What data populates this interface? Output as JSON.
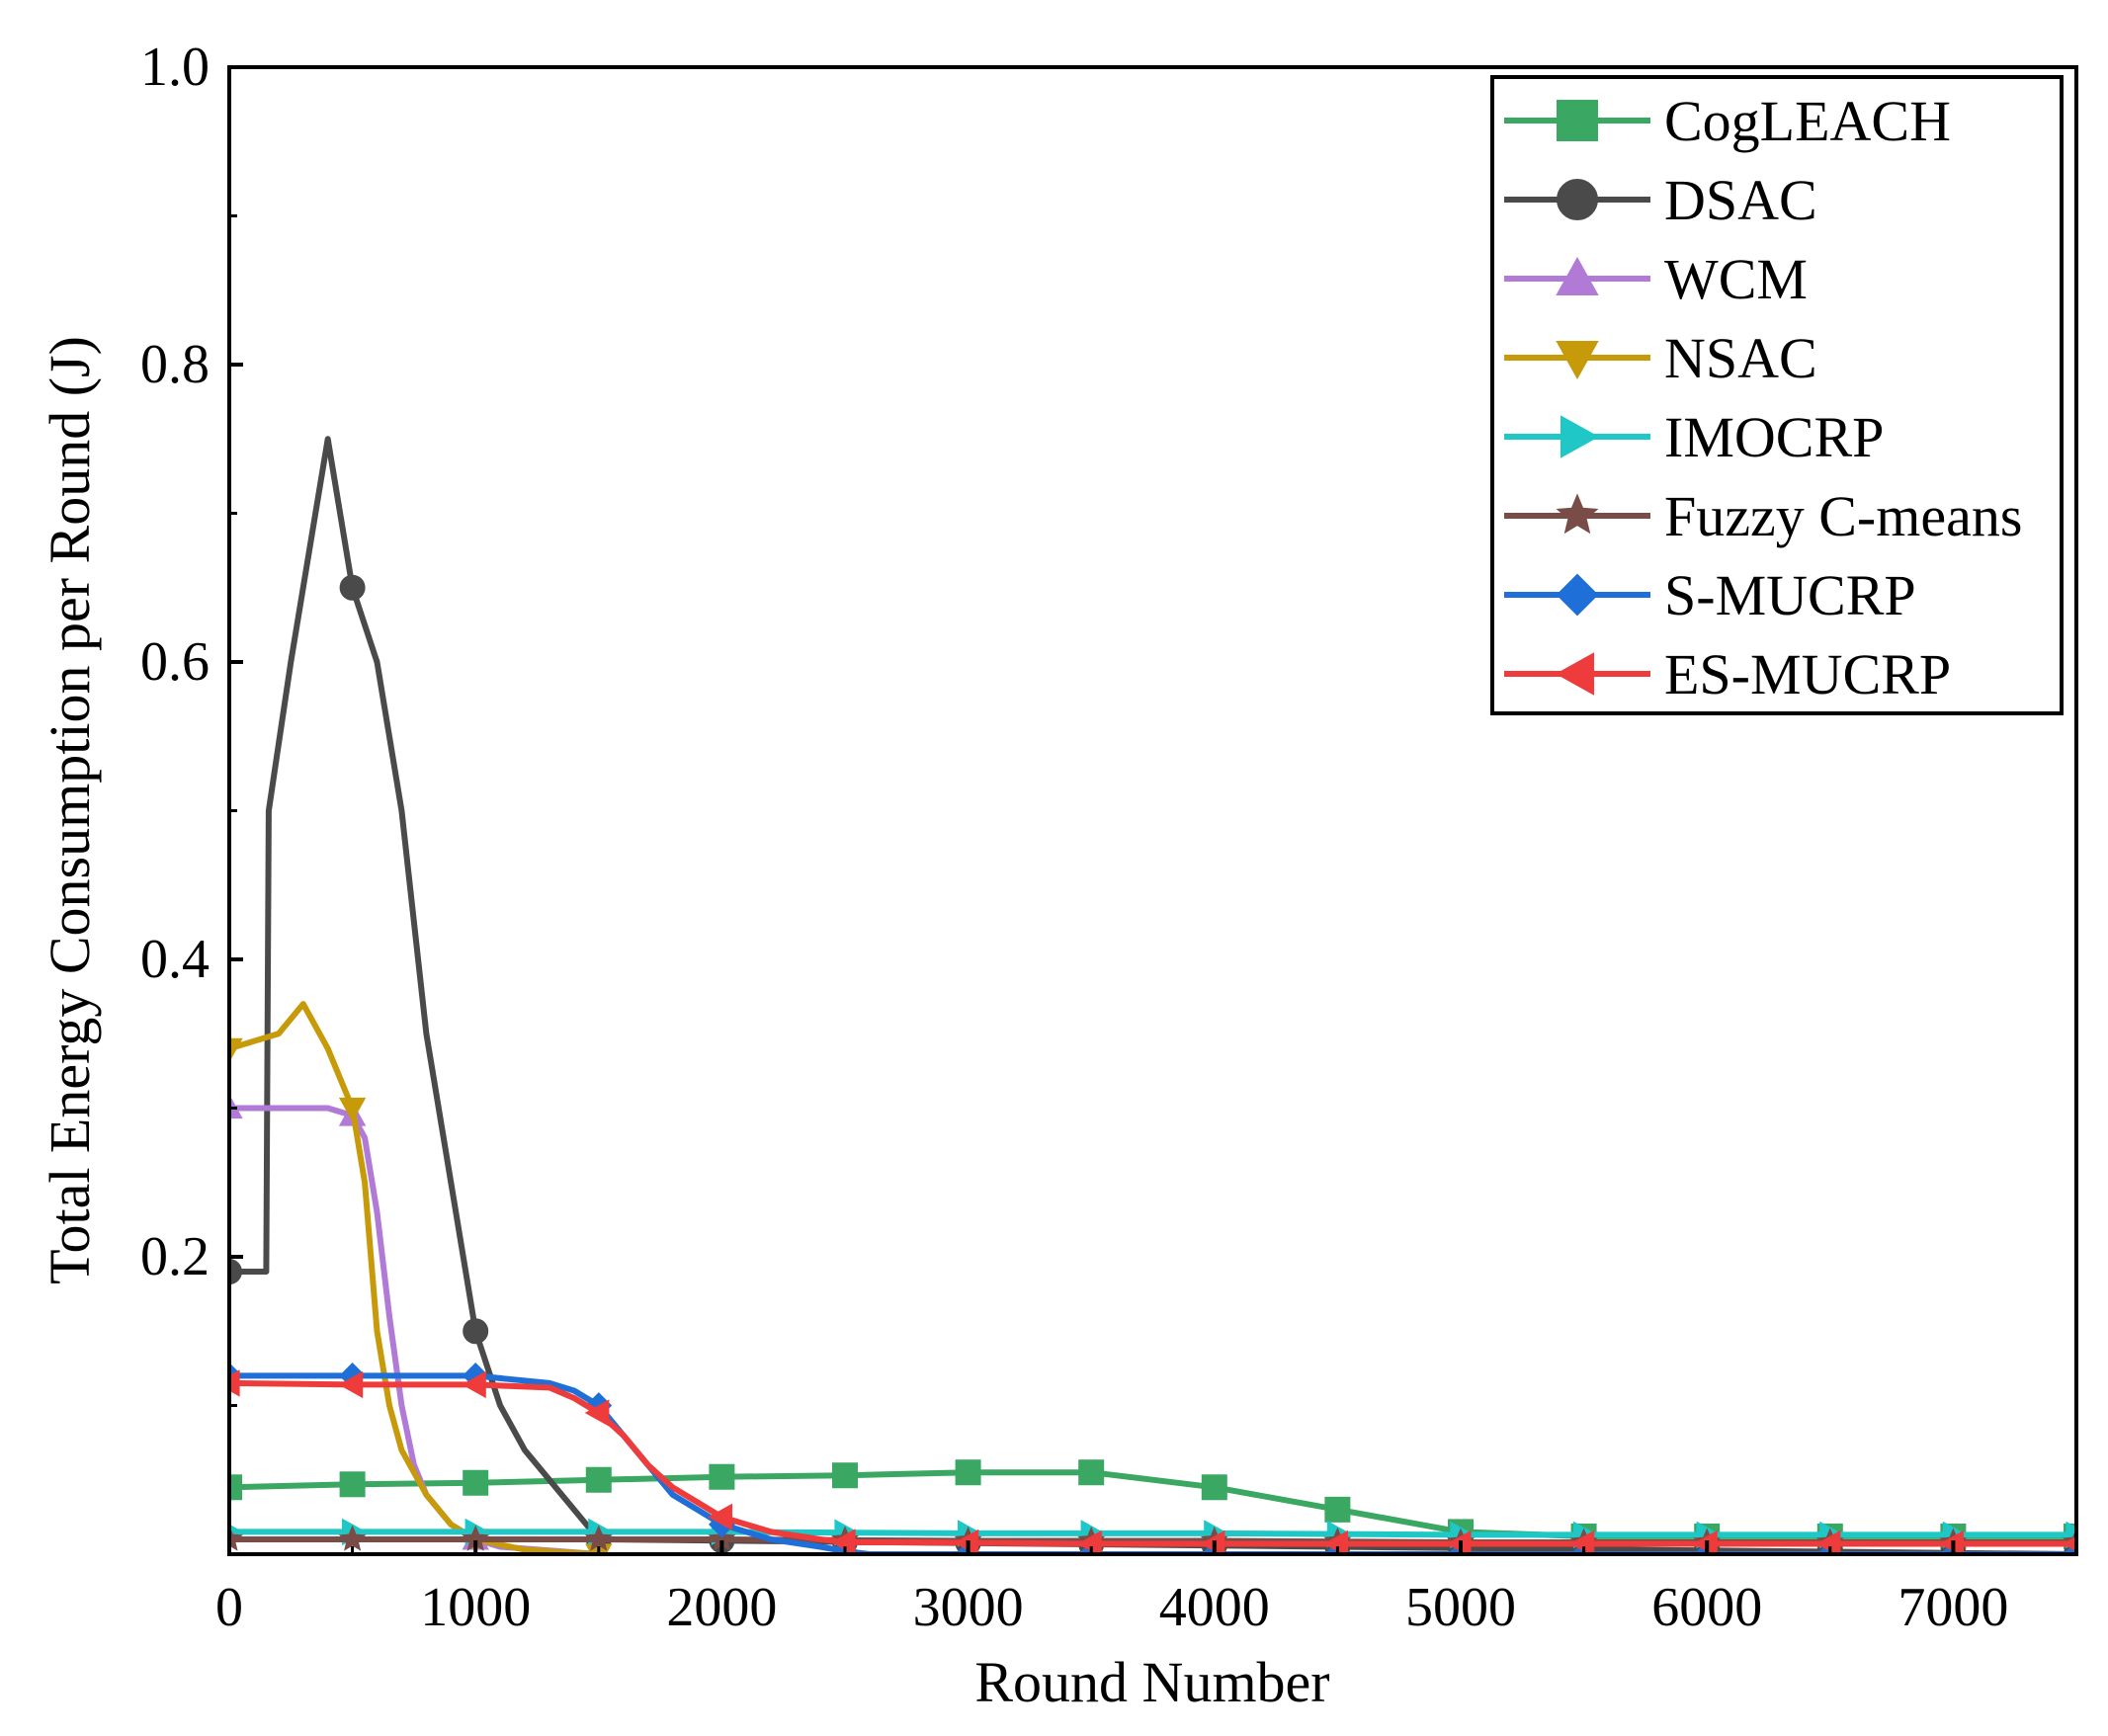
{
  "chart_data": {
    "type": "line",
    "title": "",
    "xlabel": "Round Number",
    "ylabel": "Total Energy Consumption per Round (J)",
    "xlim": [
      0,
      7500
    ],
    "ylim": [
      0,
      1.0
    ],
    "x_ticks": [
      0,
      1000,
      2000,
      3000,
      4000,
      5000,
      6000,
      7000
    ],
    "x_tick_labels": [
      "0",
      "1000",
      "2000",
      "3000",
      "4000",
      "5000",
      "6000",
      "7000"
    ],
    "y_ticks": [
      0.2,
      0.4,
      0.6,
      0.8,
      1.0
    ],
    "y_tick_labels": [
      "0.2",
      "0.4",
      "0.6",
      "0.8",
      "1.0"
    ],
    "grid": false,
    "legend_position": "top-right",
    "series": [
      {
        "name": "CogLEACH",
        "color": "#3aa862",
        "marker": "square",
        "x": [
          0,
          500,
          1000,
          1500,
          2000,
          2500,
          3000,
          3500,
          4000,
          4500,
          5000,
          5500,
          6000,
          7500
        ],
        "y": [
          0.045,
          0.047,
          0.048,
          0.05,
          0.052,
          0.053,
          0.055,
          0.055,
          0.045,
          0.03,
          0.015,
          0.012,
          0.012,
          0.012
        ]
      },
      {
        "name": "DSAC",
        "color": "#4a4a4a",
        "marker": "circle",
        "x": [
          0,
          150,
          160,
          250,
          350,
          400,
          500,
          600,
          700,
          800,
          900,
          1000,
          1100,
          1200,
          1300,
          1450,
          1500,
          7500
        ],
        "y": [
          0.19,
          0.19,
          0.5,
          0.6,
          0.7,
          0.75,
          0.65,
          0.6,
          0.5,
          0.35,
          0.25,
          0.15,
          0.1,
          0.07,
          0.05,
          0.02,
          0.01,
          0.0
        ]
      },
      {
        "name": "WCM",
        "color": "#b07ad6",
        "marker": "triangle-up",
        "x": [
          0,
          400,
          500,
          550,
          600,
          650,
          700,
          750,
          800,
          900,
          1000,
          1100,
          1500
        ],
        "y": [
          0.3,
          0.3,
          0.295,
          0.28,
          0.23,
          0.16,
          0.1,
          0.06,
          0.04,
          0.02,
          0.01,
          0.005,
          0.0
        ]
      },
      {
        "name": "NSAC",
        "color": "#c79a0a",
        "marker": "triangle-down",
        "x": [
          0,
          200,
          300,
          400,
          500,
          550,
          600,
          650,
          700,
          800,
          900,
          1000,
          1200,
          1500
        ],
        "y": [
          0.34,
          0.35,
          0.37,
          0.34,
          0.3,
          0.25,
          0.15,
          0.1,
          0.07,
          0.04,
          0.02,
          0.01,
          0.003,
          0.0
        ]
      },
      {
        "name": "IMOCRP",
        "color": "#1fc7c7",
        "marker": "triangle-right",
        "x": [
          0,
          1000,
          2000,
          3000,
          4000,
          5000,
          6000,
          7000,
          7500
        ],
        "y": [
          0.015,
          0.015,
          0.015,
          0.014,
          0.014,
          0.013,
          0.013,
          0.013,
          0.013
        ]
      },
      {
        "name": "Fuzzy C-means",
        "color": "#7a4c48",
        "marker": "star",
        "x": [
          0,
          1000,
          2000,
          3000,
          4000,
          5000,
          6000,
          7000,
          7500
        ],
        "y": [
          0.01,
          0.01,
          0.01,
          0.009,
          0.009,
          0.008,
          0.008,
          0.008,
          0.008
        ]
      },
      {
        "name": "S-MUCRP",
        "color": "#1f6fd8",
        "marker": "diamond",
        "x": [
          0,
          500,
          1000,
          1300,
          1400,
          1500,
          1600,
          1700,
          1800,
          1900,
          2000,
          2200,
          2400,
          2500,
          2600,
          3000,
          7500
        ],
        "y": [
          0.12,
          0.12,
          0.12,
          0.115,
          0.11,
          0.1,
          0.08,
          0.06,
          0.04,
          0.03,
          0.02,
          0.01,
          0.005,
          0.002,
          0.0,
          0.0,
          0.0
        ]
      },
      {
        "name": "ES-MUCRP",
        "color": "#ee3b3b",
        "marker": "triangle-left",
        "x": [
          0,
          500,
          1000,
          1300,
          1400,
          1500,
          1600,
          1700,
          1800,
          1900,
          2000,
          2200,
          2400,
          2500,
          2800,
          3500,
          5000,
          7500
        ],
        "y": [
          0.115,
          0.114,
          0.114,
          0.112,
          0.105,
          0.095,
          0.08,
          0.06,
          0.045,
          0.035,
          0.025,
          0.015,
          0.01,
          0.008,
          0.008,
          0.007,
          0.007,
          0.007
        ]
      }
    ]
  }
}
